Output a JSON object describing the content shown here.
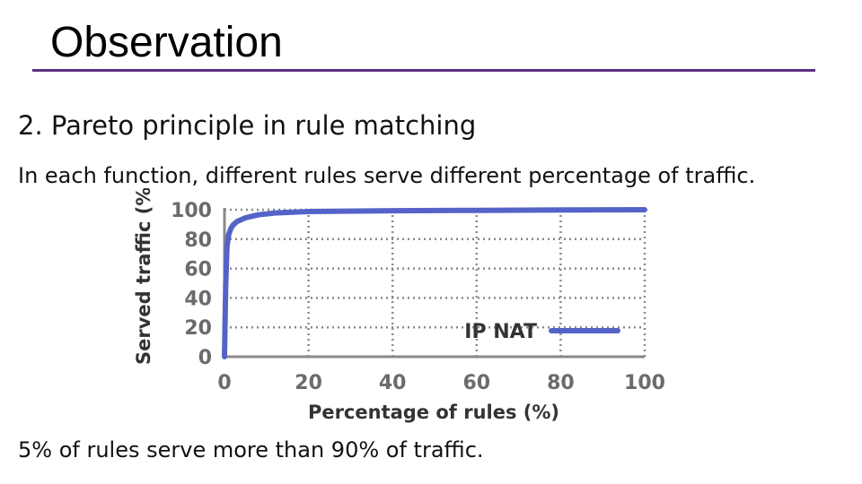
{
  "slide": {
    "title": "Observation",
    "heading": "2. Pareto principle in rule matching",
    "subline": "In each function, different rules serve different percentage of traffic.",
    "footer": "5% of rules serve more than 90% of traffic."
  },
  "colors": {
    "title_rule": "#5b2d83",
    "series": "#5563c8",
    "axis": "#8a8a8a",
    "grid": "#8a8a8a",
    "tick_text": "#6b6b6b"
  },
  "chart_data": {
    "type": "line",
    "title": "",
    "xlabel": "Percentage of rules (%)",
    "ylabel": "Served traffic (%)",
    "xlim": [
      0,
      100
    ],
    "ylim": [
      0,
      100
    ],
    "xticks": [
      "0",
      "20",
      "40",
      "60",
      "80",
      "100"
    ],
    "yticks": [
      "0",
      "20",
      "40",
      "60",
      "80",
      "100"
    ],
    "grid": "dotted",
    "legend_position": "lower-right",
    "series": [
      {
        "name": "IP NAT",
        "color": "#5563c8",
        "x": [
          0,
          0.3,
          0.6,
          1,
          1.5,
          2,
          3,
          5,
          8,
          12,
          20,
          40,
          60,
          80,
          100
        ],
        "y": [
          0,
          50,
          75,
          83,
          87,
          89.5,
          92,
          94.5,
          96.5,
          97.8,
          98.8,
          99.3,
          99.6,
          99.8,
          100
        ]
      }
    ]
  }
}
